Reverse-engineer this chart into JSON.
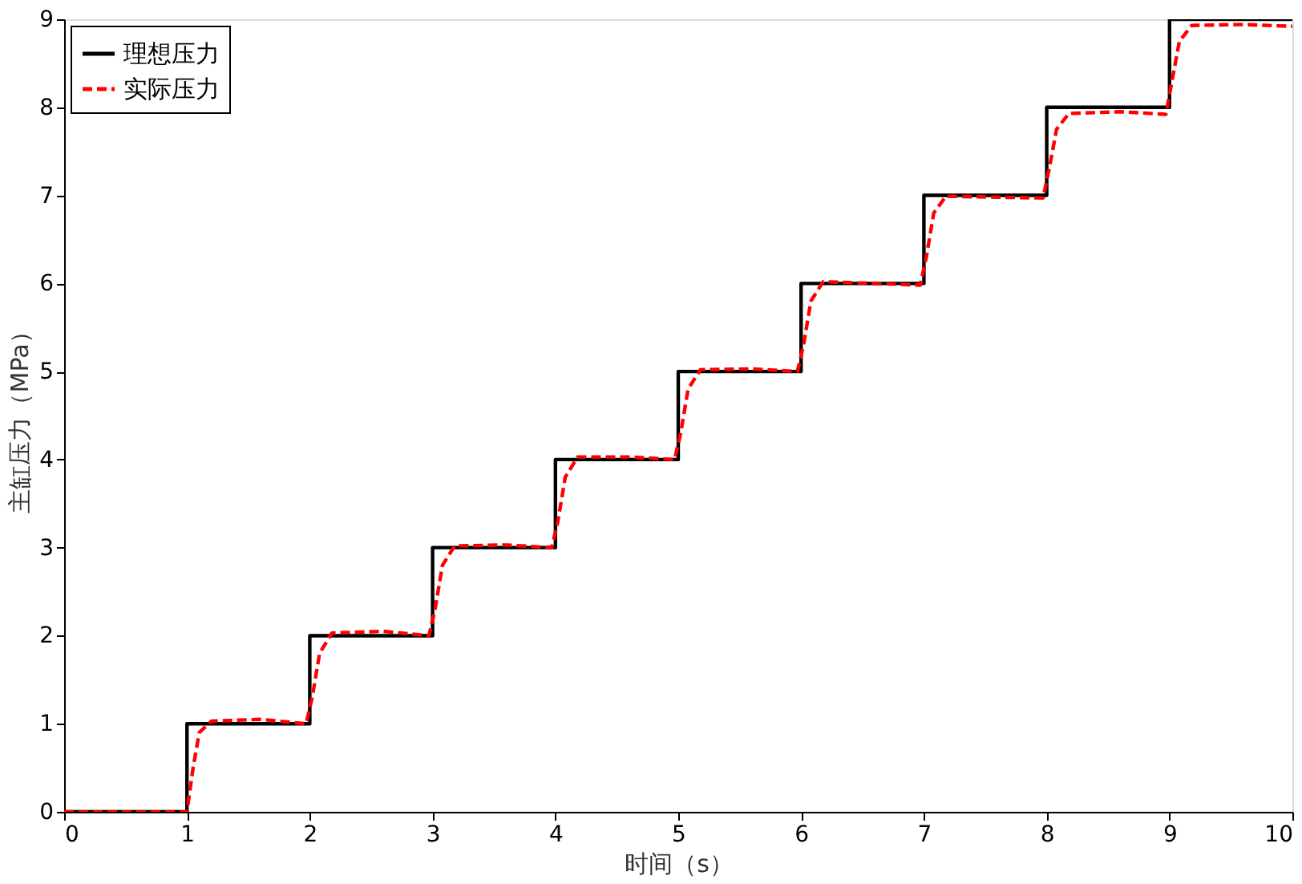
{
  "chart_data": {
    "type": "line",
    "xlabel": "时间（s）",
    "ylabel": "主缸压力（MPa）",
    "xlim": [
      0,
      10
    ],
    "ylim": [
      0,
      9
    ],
    "xticks": [
      0,
      1,
      2,
      3,
      4,
      5,
      6,
      7,
      8,
      9,
      10
    ],
    "yticks": [
      0,
      1,
      2,
      3,
      4,
      5,
      6,
      7,
      8,
      9
    ],
    "grid": false,
    "legend": "top left",
    "series": [
      {
        "name": "理想压力",
        "type": "step",
        "color": "#000000",
        "line_style": "solid",
        "x": [
          0,
          1,
          2,
          3,
          4,
          5,
          6,
          7,
          8,
          9,
          10
        ],
        "values": [
          0,
          1,
          2,
          3,
          4,
          5,
          6,
          7,
          8,
          9,
          9
        ]
      },
      {
        "name": "实际压力",
        "color": "#ff0000",
        "line_style": "dashed",
        "x": [
          0,
          1,
          1.05,
          1.1,
          1.2,
          1.6,
          1.97,
          2.02,
          2.08,
          2.18,
          2.6,
          2.97,
          3.02,
          3.08,
          3.18,
          3.6,
          3.97,
          4.02,
          4.08,
          4.18,
          4.6,
          4.97,
          5.02,
          5.08,
          5.18,
          5.6,
          5.97,
          6.02,
          6.08,
          6.18,
          6.6,
          6.97,
          7.02,
          7.08,
          7.18,
          7.6,
          7.97,
          8.02,
          8.08,
          8.18,
          8.6,
          8.97,
          9.02,
          9.08,
          9.18,
          9.6,
          10
        ],
        "values": [
          0,
          0,
          0.5,
          0.9,
          1.03,
          1.05,
          1.0,
          1.3,
          1.8,
          2.03,
          2.05,
          2.0,
          2.3,
          2.8,
          3.02,
          3.03,
          3.0,
          3.3,
          3.8,
          4.03,
          4.03,
          4.0,
          4.3,
          4.8,
          5.02,
          5.03,
          5.0,
          5.3,
          5.8,
          6.02,
          6.0,
          5.98,
          6.3,
          6.8,
          6.99,
          6.98,
          6.97,
          7.3,
          7.75,
          7.93,
          7.95,
          7.92,
          8.3,
          8.75,
          8.93,
          8.94,
          8.92
        ]
      }
    ]
  }
}
